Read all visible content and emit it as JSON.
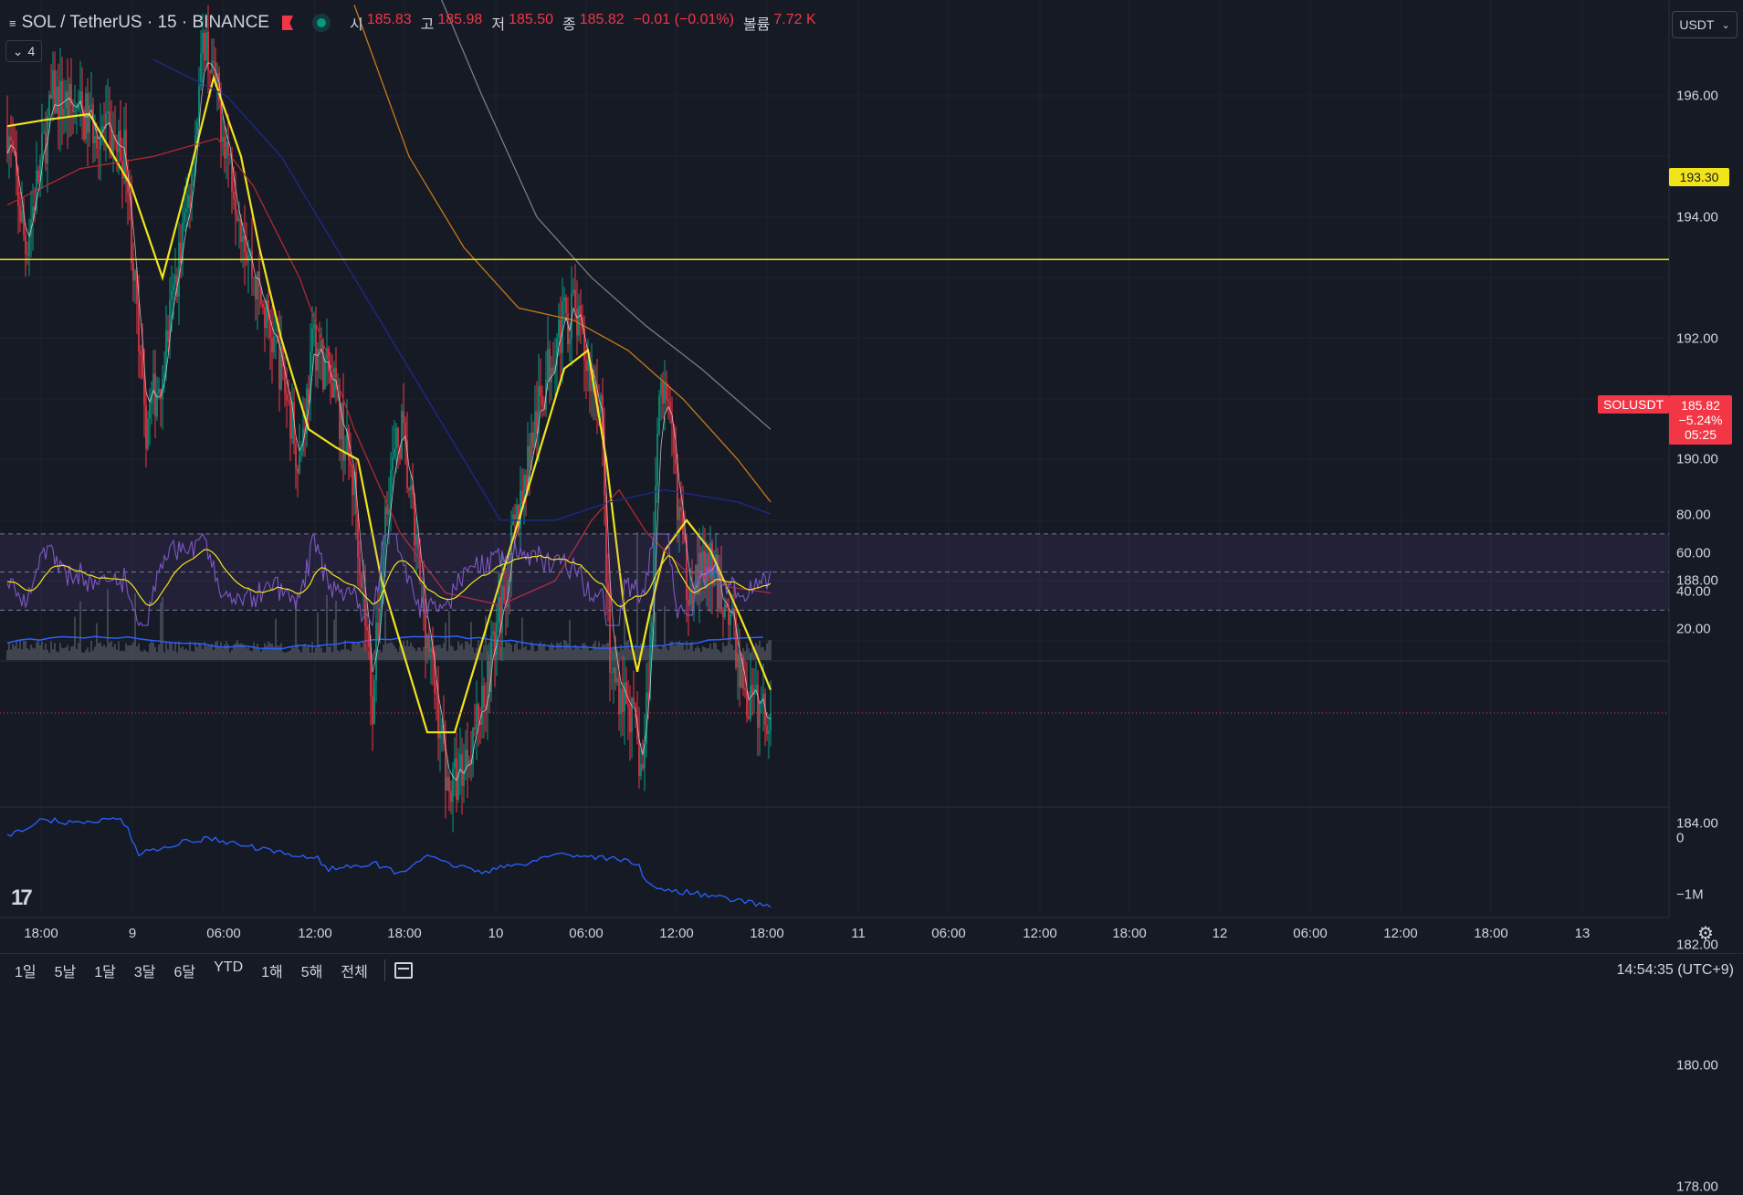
{
  "header": {
    "symbol": "SOL / TetherUS · 15 · BINANCE",
    "ohlc": [
      {
        "label": "시",
        "value": "185.83"
      },
      {
        "label": "고",
        "value": "185.98"
      },
      {
        "label": "저",
        "value": "185.50"
      },
      {
        "label": "종",
        "value": "185.82"
      },
      {
        "label": "",
        "value": "−0.01 (−0.01%)"
      },
      {
        "label": "볼륨",
        "value": "7.72 K"
      }
    ],
    "collapse_count": "4",
    "currency": "USDT"
  },
  "price_axis": {
    "labels": [
      "196.00",
      "194.00",
      "192.00",
      "190.00",
      "188.00",
      "184.00",
      "182.00",
      "180.00",
      "178.00"
    ],
    "hline_value": "193.30",
    "symbol_tag": "SOLUSDT",
    "last_price": "185.82",
    "last_change": "−5.24%",
    "countdown": "05:25"
  },
  "rsi_axis": {
    "labels": [
      "80.00",
      "60.00",
      "40.00",
      "20.00"
    ]
  },
  "cvd_axis": {
    "labels": [
      "0",
      "−1M"
    ]
  },
  "time_axis": {
    "labels": [
      "18:00",
      "9",
      "06:00",
      "12:00",
      "18:00",
      "10",
      "06:00",
      "12:00",
      "18:00",
      "11",
      "06:00",
      "12:00",
      "18:00",
      "12",
      "06:00",
      "12:00",
      "18:00",
      "13"
    ]
  },
  "range_buttons": [
    "1일",
    "5날",
    "1달",
    "3달",
    "6달",
    "YTD",
    "1해",
    "5해",
    "전체"
  ],
  "clock": "14:54:35 (UTC+9)",
  "logo": "17",
  "colors": {
    "background": "#161a25",
    "up": "#089981",
    "down": "#f23645",
    "ma_yellow": "#f2e41b",
    "ma_red": "#b22833",
    "ma_orange": "#c8781a",
    "ma_blue": "#1e2a8c",
    "ma_gray": "#787b86",
    "rsi": "#7e57c2",
    "cvd": "#2962ff"
  },
  "chart_data": {
    "type": "candlestick",
    "symbol": "SOL / TetherUS",
    "interval": "15",
    "exchange": "BINANCE",
    "price_range": [
      177,
      198.5
    ],
    "horizontal_line": 193.3,
    "last_price": 185.82,
    "path_keypoints": [
      {
        "t": 0,
        "p": 195.5
      },
      {
        "t": 10,
        "p": 193.5
      },
      {
        "t": 25,
        "p": 196.0
      },
      {
        "t": 50,
        "p": 195.5
      },
      {
        "t": 65,
        "p": 195.0
      },
      {
        "t": 75,
        "p": 190.5
      },
      {
        "t": 85,
        "p": 191.5
      },
      {
        "t": 100,
        "p": 194.5
      },
      {
        "t": 108,
        "p": 197.0
      },
      {
        "t": 118,
        "p": 195.5
      },
      {
        "t": 135,
        "p": 193.0
      },
      {
        "t": 150,
        "p": 191.5
      },
      {
        "t": 160,
        "p": 190.0
      },
      {
        "t": 168,
        "p": 192.0
      },
      {
        "t": 180,
        "p": 191.0
      },
      {
        "t": 190,
        "p": 189.5
      },
      {
        "t": 200,
        "p": 186.0
      },
      {
        "t": 208,
        "p": 189.5
      },
      {
        "t": 216,
        "p": 190.5
      },
      {
        "t": 226,
        "p": 188.0
      },
      {
        "t": 235,
        "p": 186.0
      },
      {
        "t": 242,
        "p": 184.5
      },
      {
        "t": 250,
        "p": 185.0
      },
      {
        "t": 260,
        "p": 186.0
      },
      {
        "t": 270,
        "p": 187.5
      },
      {
        "t": 285,
        "p": 190.0
      },
      {
        "t": 300,
        "p": 192.0
      },
      {
        "t": 310,
        "p": 192.5
      },
      {
        "t": 318,
        "p": 191.5
      },
      {
        "t": 325,
        "p": 191.0
      },
      {
        "t": 330,
        "p": 186.5
      },
      {
        "t": 340,
        "p": 186.0
      },
      {
        "t": 348,
        "p": 184.8
      },
      {
        "t": 353,
        "p": 187.5
      },
      {
        "t": 357,
        "p": 191.5
      },
      {
        "t": 365,
        "p": 190.0
      },
      {
        "t": 372,
        "p": 188.0
      },
      {
        "t": 385,
        "p": 188.2
      },
      {
        "t": 395,
        "p": 187.5
      },
      {
        "t": 405,
        "p": 186.0
      },
      {
        "t": 418,
        "p": 185.8
      }
    ],
    "moving_averages": [
      {
        "color": "#f2e41b",
        "points": [
          [
            0,
            195.5
          ],
          [
            20,
            195.6
          ],
          [
            45,
            195.7
          ],
          [
            68,
            194.5
          ],
          [
            85,
            193.0
          ],
          [
            98,
            194.5
          ],
          [
            113,
            196.3
          ],
          [
            128,
            195.0
          ],
          [
            138,
            193.5
          ],
          [
            150,
            192.0
          ],
          [
            165,
            190.5
          ],
          [
            180,
            190.2
          ],
          [
            192,
            190.0
          ],
          [
            205,
            188.0
          ],
          [
            215,
            187.0
          ],
          [
            230,
            185.5
          ],
          [
            245,
            185.5
          ],
          [
            260,
            187.0
          ],
          [
            275,
            188.5
          ],
          [
            290,
            190.0
          ],
          [
            305,
            191.5
          ],
          [
            318,
            191.8
          ],
          [
            328,
            190.0
          ],
          [
            338,
            187.5
          ],
          [
            345,
            186.5
          ],
          [
            352,
            187.5
          ],
          [
            360,
            188.5
          ],
          [
            372,
            189.0
          ],
          [
            385,
            188.5
          ],
          [
            400,
            187.5
          ],
          [
            410,
            186.8
          ],
          [
            418,
            186.2
          ]
        ]
      },
      {
        "color": "#b22833",
        "points": [
          [
            0,
            194.2
          ],
          [
            40,
            194.8
          ],
          [
            80,
            195.0
          ],
          [
            115,
            195.3
          ],
          [
            135,
            194.5
          ],
          [
            160,
            193.0
          ],
          [
            190,
            190.5
          ],
          [
            215,
            188.8
          ],
          [
            240,
            187.8
          ],
          [
            270,
            187.6
          ],
          [
            300,
            188.0
          ],
          [
            320,
            189.0
          ],
          [
            335,
            189.5
          ],
          [
            350,
            188.8
          ],
          [
            370,
            188.2
          ],
          [
            395,
            187.9
          ],
          [
            418,
            187.8
          ]
        ]
      },
      {
        "color": "#1e2a8c",
        "points": [
          [
            80,
            196.6
          ],
          [
            120,
            196.0
          ],
          [
            150,
            195.0
          ],
          [
            190,
            193.0
          ],
          [
            230,
            191.0
          ],
          [
            270,
            189.0
          ],
          [
            300,
            189.0
          ],
          [
            330,
            189.3
          ],
          [
            360,
            189.5
          ],
          [
            400,
            189.3
          ],
          [
            418,
            189.1
          ]
        ]
      },
      {
        "color": "#c8781a",
        "points": [
          [
            190,
            197.5
          ],
          [
            220,
            195.0
          ],
          [
            250,
            193.5
          ],
          [
            280,
            192.5
          ],
          [
            310,
            192.3
          ],
          [
            340,
            191.8
          ],
          [
            370,
            191.0
          ],
          [
            400,
            190.0
          ],
          [
            418,
            189.3
          ]
        ]
      },
      {
        "color": "#787b86",
        "points": [
          [
            225,
            198.5
          ],
          [
            260,
            196.0
          ],
          [
            290,
            194.0
          ],
          [
            320,
            193.0
          ],
          [
            350,
            192.2
          ],
          [
            380,
            191.5
          ],
          [
            418,
            190.5
          ]
        ]
      }
    ],
    "rsi": {
      "range": [
        0,
        100
      ],
      "upper_band": 70,
      "middle": 50,
      "lower_band": 30
    },
    "cvd": {
      "ticks": [
        "0",
        "−1M"
      ]
    }
  }
}
